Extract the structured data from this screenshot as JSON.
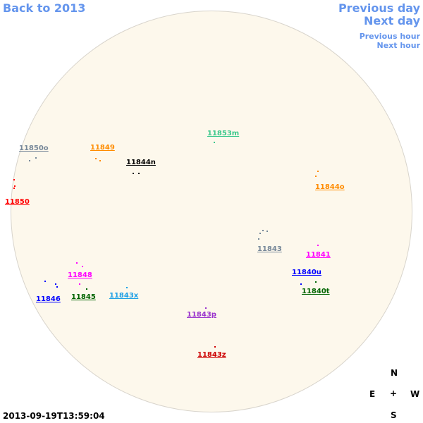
{
  "nav": {
    "back": "Back to 2013",
    "prev_day": "Previous day",
    "next_day": "Next day",
    "prev_hour": "Previous hour",
    "next_hour": "Next hour"
  },
  "regions": [
    {
      "label": "11853m",
      "color": "#3cc88c"
    },
    {
      "label": "11850o",
      "color": "#778899"
    },
    {
      "label": "11849",
      "color": "#ff8c00"
    },
    {
      "label": "11844n",
      "color": "#000000"
    },
    {
      "label": "11850",
      "color": "#ff0000"
    },
    {
      "label": "11844o",
      "color": "#ff8c00"
    },
    {
      "label": "11843",
      "color": "#778899"
    },
    {
      "label": "11841",
      "color": "#ff00ff"
    },
    {
      "label": "11840u",
      "color": "#0000ff"
    },
    {
      "label": "11840t",
      "color": "#006400"
    },
    {
      "label": "11848",
      "color": "#ff00ff"
    },
    {
      "label": "11846",
      "color": "#0000ff"
    },
    {
      "label": "11845",
      "color": "#006400"
    },
    {
      "label": "11843x",
      "color": "#1ea0e6"
    },
    {
      "label": "11843p",
      "color": "#9932cc"
    },
    {
      "label": "11843z",
      "color": "#cc0000"
    }
  ],
  "compass": {
    "n": "N",
    "e": "E",
    "w": "W",
    "s": "S",
    "center": "+"
  },
  "timestamp": "2013-09-19T13:59:04"
}
